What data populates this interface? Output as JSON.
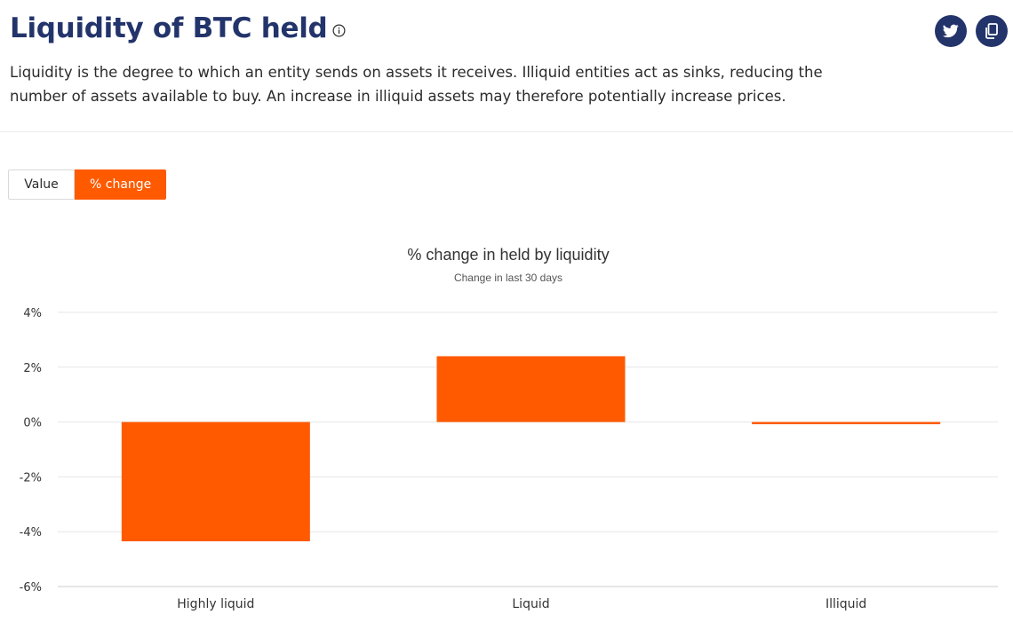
{
  "header": {
    "title": "Liquidity of BTC held",
    "description": "Liquidity is the degree to which an entity sends on assets it receives. Illiquid entities act as sinks, reducing the number of assets available to buy. An increase in illiquid assets may therefore potentially increase prices.",
    "info_icon": "info-circle-icon",
    "share_buttons": [
      {
        "icon": "twitter-bird-icon"
      },
      {
        "icon": "copy-document-icon"
      }
    ]
  },
  "toggle": {
    "value_label": "Value",
    "percent_label": "% change",
    "active": "% change"
  },
  "colors": {
    "accent": "#ff5a00",
    "brand": "#23346b",
    "grid": "#e6e6e6"
  },
  "chart_data": {
    "type": "bar",
    "title": "% change in held by liquidity",
    "subtitle": "Change in last 30 days",
    "xlabel": "",
    "ylabel": "",
    "categories": [
      "Highly liquid",
      "Liquid",
      "Illiquid"
    ],
    "values": [
      -4.35,
      2.4,
      -0.08
    ],
    "ylim": [
      -6,
      4
    ],
    "yticks": [
      4,
      2,
      0,
      -2,
      -4,
      -6
    ],
    "ytick_labels": [
      "4%",
      "2%",
      "0%",
      "-2%",
      "-4%",
      "-6%"
    ],
    "grid": true,
    "legend": "none",
    "color": "#ff5a00"
  }
}
